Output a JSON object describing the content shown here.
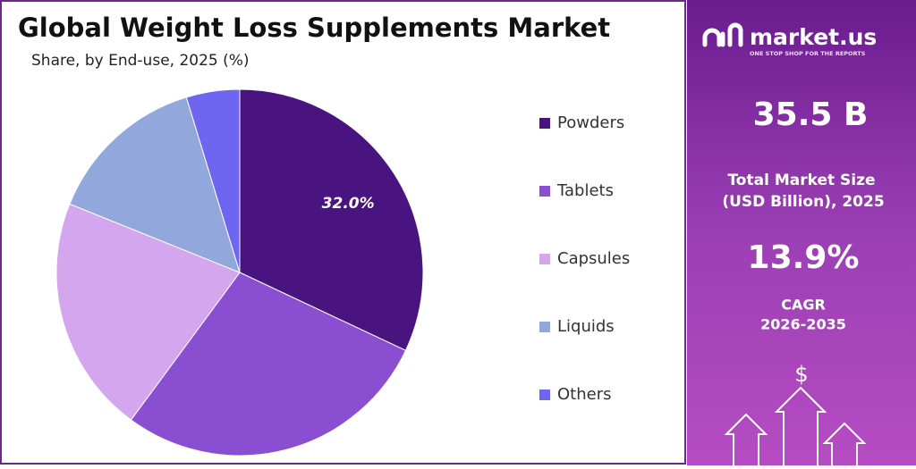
{
  "chart_data": {
    "type": "pie",
    "title": "Global Weight Loss Supplements Market",
    "subtitle": "Share, by End-use, 2025 (%)",
    "categories": [
      "Powders",
      "Tablets",
      "Capsules",
      "Liquids",
      "Others"
    ],
    "values": [
      32.0,
      28.1,
      21.0,
      14.2,
      4.7
    ],
    "value_labels": [
      "32.0%",
      null,
      null,
      null,
      null
    ],
    "colors": [
      "#4a1480",
      "#8a4fd0",
      "#d4a6ee",
      "#92a8dc",
      "#6e66f0"
    ],
    "legend": "right"
  },
  "side_panel": {
    "brand": "market.us",
    "tagline": "ONE STOP SHOP FOR THE REPORTS",
    "market_size": "35.5 B",
    "market_size_label": [
      "Total Market Size",
      "(USD Billion), 2025"
    ],
    "cagr": "13.9%",
    "cagr_label": [
      "CAGR",
      "2026-2035"
    ],
    "currency_symbol": "$"
  }
}
